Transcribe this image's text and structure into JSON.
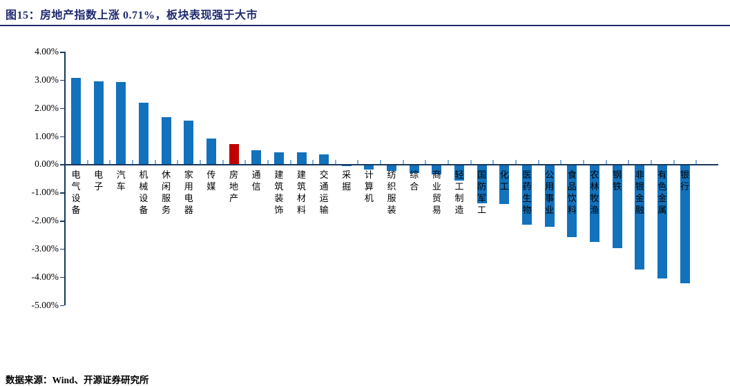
{
  "header": {
    "title": "图15：房地产指数上涨 0.71%，板块表现强于大市"
  },
  "footer": {
    "source": "数据来源：Wind、开源证券研究所"
  },
  "colors": {
    "bar_blue": "#1272BC",
    "highlight_red": "#C00000",
    "axis_navy": "#17365D",
    "category_tick_blue": "#7CAFDE",
    "title_navy": "#1F2A6E"
  },
  "chart_data": {
    "type": "bar",
    "title": "图15：房地产指数上涨 0.71%，板块表现强于大市",
    "categories": [
      "电气设备",
      "电子",
      "汽车",
      "机械设备",
      "休闲服务",
      "家用电器",
      "传媒",
      "房地产",
      "通信",
      "建筑装饰",
      "建筑材料",
      "交通运输",
      "采掘",
      "计算机",
      "纺织服装",
      "综合",
      "商业贸易",
      "轻工制造",
      "国防军工",
      "化工",
      "医药生物",
      "公用事业",
      "食品饮料",
      "农林牧渔",
      "钢铁",
      "非银金融",
      "有色金属",
      "银行"
    ],
    "values": [
      3.07,
      2.95,
      2.92,
      2.2,
      1.67,
      1.56,
      0.91,
      0.71,
      0.51,
      0.43,
      0.42,
      0.36,
      -0.03,
      -0.16,
      -0.21,
      -0.27,
      -0.33,
      -0.53,
      -1.35,
      -1.38,
      -2.12,
      -2.18,
      -2.55,
      -2.71,
      -2.93,
      -3.69,
      -4.02,
      -4.18
    ],
    "highlight_category": "房地产",
    "highlight_value_pct": "0.71%",
    "bar_color": "#1272BC",
    "highlight_color": "#C00000",
    "y_tick_labels": [
      "4.00%",
      "3.00%",
      "2.00%",
      "1.00%",
      "0.00%",
      "-1.00%",
      "-2.00%",
      "-3.00%",
      "-4.00%",
      "-5.00%"
    ],
    "ylim": [
      -5.0,
      4.0
    ],
    "xlabel": "",
    "ylabel": "",
    "grid": false,
    "legend": false
  }
}
